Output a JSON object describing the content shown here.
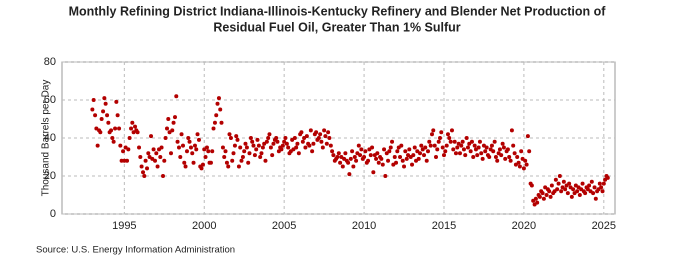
{
  "chart_data": {
    "type": "scatter",
    "title": [
      "Monthly Refining District Indiana-Illinois-Kentucky Refinery and Blender Net Production of",
      "Residual Fuel Oil, Greater Than 1% Sulfur"
    ],
    "y_label": "Thousand Barrels per Day",
    "source": "Source: U.S. Energy Information Administration",
    "color": "#b30000",
    "grid": true,
    "xlim": [
      1991.1,
      2025.7
    ],
    "xticks": [
      1995,
      2000,
      2005,
      2010,
      2015,
      2020,
      2025
    ],
    "ylim": [
      0,
      80
    ],
    "yticks": [
      0,
      20,
      40,
      60,
      80
    ],
    "x": [
      1993,
      1993.08,
      1993.17,
      1993.25,
      1993.33,
      1993.42,
      1993.5,
      1993.58,
      1993.67,
      1993.75,
      1993.83,
      1993.92,
      1994,
      1994.08,
      1994.17,
      1994.25,
      1994.33,
      1994.42,
      1994.5,
      1994.58,
      1994.67,
      1994.75,
      1994.83,
      1994.92,
      1995,
      1995.08,
      1995.17,
      1995.25,
      1995.33,
      1995.42,
      1995.5,
      1995.58,
      1995.67,
      1995.75,
      1995.83,
      1995.92,
      1996,
      1996.08,
      1996.17,
      1996.25,
      1996.33,
      1996.42,
      1996.5,
      1996.58,
      1996.67,
      1996.75,
      1996.83,
      1996.92,
      1997,
      1997.08,
      1997.17,
      1997.25,
      1997.33,
      1997.42,
      1997.5,
      1997.58,
      1997.67,
      1997.75,
      1997.83,
      1997.92,
      1998,
      1998.08,
      1998.17,
      1998.25,
      1998.33,
      1998.42,
      1998.5,
      1998.58,
      1998.67,
      1998.75,
      1998.83,
      1998.92,
      1999,
      1999.08,
      1999.17,
      1999.25,
      1999.33,
      1999.42,
      1999.5,
      1999.58,
      1999.67,
      1999.75,
      1999.83,
      1999.92,
      2000,
      2000.08,
      2000.17,
      2000.25,
      2000.33,
      2000.42,
      2000.5,
      2000.58,
      2000.67,
      2000.75,
      2000.83,
      2000.92,
      2001,
      2001.08,
      2001.17,
      2001.25,
      2001.33,
      2001.42,
      2001.5,
      2001.58,
      2001.67,
      2001.75,
      2001.83,
      2001.92,
      2002,
      2002.08,
      2002.17,
      2002.25,
      2002.33,
      2002.42,
      2002.5,
      2002.58,
      2002.67,
      2002.75,
      2002.83,
      2002.92,
      2003,
      2003.08,
      2003.17,
      2003.25,
      2003.33,
      2003.42,
      2003.5,
      2003.58,
      2003.67,
      2003.75,
      2003.83,
      2003.92,
      2004,
      2004.08,
      2004.17,
      2004.25,
      2004.33,
      2004.42,
      2004.5,
      2004.58,
      2004.67,
      2004.75,
      2004.83,
      2004.92,
      2005,
      2005.08,
      2005.17,
      2005.25,
      2005.33,
      2005.42,
      2005.5,
      2005.58,
      2005.67,
      2005.75,
      2005.83,
      2005.92,
      2006,
      2006.08,
      2006.17,
      2006.25,
      2006.33,
      2006.42,
      2006.5,
      2006.58,
      2006.67,
      2006.75,
      2006.83,
      2006.92,
      2007,
      2007.08,
      2007.17,
      2007.25,
      2007.33,
      2007.42,
      2007.5,
      2007.58,
      2007.67,
      2007.75,
      2007.83,
      2007.92,
      2008,
      2008.08,
      2008.17,
      2008.25,
      2008.33,
      2008.42,
      2008.5,
      2008.58,
      2008.67,
      2008.75,
      2008.83,
      2008.92,
      2009,
      2009.08,
      2009.17,
      2009.25,
      2009.33,
      2009.42,
      2009.5,
      2009.58,
      2009.67,
      2009.75,
      2009.83,
      2009.92,
      2010,
      2010.08,
      2010.17,
      2010.25,
      2010.33,
      2010.42,
      2010.5,
      2010.58,
      2010.67,
      2010.75,
      2010.83,
      2010.92,
      2011,
      2011.08,
      2011.17,
      2011.25,
      2011.33,
      2011.42,
      2011.5,
      2011.58,
      2011.67,
      2011.75,
      2011.83,
      2011.92,
      2012,
      2012.08,
      2012.17,
      2012.25,
      2012.33,
      2012.42,
      2012.5,
      2012.58,
      2012.67,
      2012.75,
      2012.83,
      2012.92,
      2013,
      2013.08,
      2013.17,
      2013.25,
      2013.33,
      2013.42,
      2013.5,
      2013.58,
      2013.67,
      2013.75,
      2013.83,
      2013.92,
      2014,
      2014.08,
      2014.17,
      2014.25,
      2014.33,
      2014.42,
      2014.5,
      2014.58,
      2014.67,
      2014.75,
      2014.83,
      2014.92,
      2015,
      2015.08,
      2015.17,
      2015.25,
      2015.33,
      2015.42,
      2015.5,
      2015.58,
      2015.67,
      2015.75,
      2015.83,
      2015.92,
      2016,
      2016.08,
      2016.17,
      2016.25,
      2016.33,
      2016.42,
      2016.5,
      2016.58,
      2016.67,
      2016.75,
      2016.83,
      2016.92,
      2017,
      2017.08,
      2017.17,
      2017.25,
      2017.33,
      2017.42,
      2017.5,
      2017.58,
      2017.67,
      2017.75,
      2017.83,
      2017.92,
      2018,
      2018.08,
      2018.17,
      2018.25,
      2018.33,
      2018.42,
      2018.5,
      2018.58,
      2018.67,
      2018.75,
      2018.83,
      2018.92,
      2019,
      2019.08,
      2019.17,
      2019.25,
      2019.33,
      2019.42,
      2019.5,
      2019.58,
      2019.67,
      2019.75,
      2019.83,
      2019.92,
      2020,
      2020.08,
      2020.17,
      2020.25,
      2020.33,
      2020.42,
      2020.5,
      2020.58,
      2020.67,
      2020.75,
      2020.83,
      2020.92,
      2021,
      2021.08,
      2021.17,
      2021.25,
      2021.33,
      2021.42,
      2021.5,
      2021.58,
      2021.67,
      2021.75,
      2021.83,
      2021.92,
      2022,
      2022.08,
      2022.17,
      2022.25,
      2022.33,
      2022.42,
      2022.5,
      2022.58,
      2022.67,
      2022.75,
      2022.83,
      2022.92,
      2023,
      2023.08,
      2023.17,
      2023.25,
      2023.33,
      2023.42,
      2023.5,
      2023.58,
      2023.67,
      2023.75,
      2023.83,
      2023.92,
      2024,
      2024.08,
      2024.17,
      2024.25,
      2024.33,
      2024.42,
      2024.5,
      2024.58,
      2024.67,
      2024.75,
      2024.83,
      2024.92,
      2025,
      2025.08,
      2025.17,
      2025.25
    ],
    "values": [
      55,
      60,
      52,
      45,
      36,
      44,
      43,
      50,
      54,
      61,
      58,
      52,
      48,
      43,
      44,
      40,
      38,
      45,
      59,
      52,
      45,
      36,
      28,
      33,
      28,
      35,
      28,
      34,
      40,
      45,
      48,
      43,
      46,
      44,
      43,
      35,
      30,
      25,
      22,
      20,
      28,
      24,
      32,
      30,
      41,
      29,
      34,
      28,
      32,
      25,
      34,
      30,
      35,
      20,
      28,
      40,
      45,
      50,
      43,
      32,
      44,
      48,
      51,
      62,
      38,
      35,
      30,
      42,
      36,
      27,
      25,
      33,
      40,
      38,
      35,
      32,
      27,
      36,
      34,
      42,
      39,
      25,
      24,
      26,
      34,
      30,
      35,
      33,
      27,
      27,
      33,
      45,
      48,
      52,
      58,
      61,
      55,
      48,
      35,
      30,
      33,
      27,
      25,
      42,
      40,
      28,
      32,
      36,
      41,
      39,
      25,
      35,
      28,
      30,
      33,
      37,
      35,
      27,
      32,
      40,
      38,
      36,
      31,
      34,
      39,
      36,
      30,
      32,
      35,
      37,
      28,
      38,
      40,
      42,
      35,
      31,
      37,
      39,
      40,
      38,
      33,
      35,
      34,
      36,
      38,
      40,
      37,
      35,
      32,
      33,
      39,
      34,
      40,
      35,
      37,
      32,
      42,
      43,
      38,
      40,
      35,
      41,
      37,
      36,
      44,
      33,
      37,
      42,
      43,
      39,
      40,
      42,
      38,
      35,
      44,
      41,
      37,
      43,
      40,
      36,
      33,
      31,
      28,
      29,
      30,
      32,
      27,
      30,
      25,
      29,
      32,
      28,
      27,
      21,
      29,
      33,
      25,
      30,
      28,
      32,
      36,
      31,
      34,
      29,
      30,
      33,
      27,
      28,
      34,
      31,
      35,
      22,
      31,
      29,
      32,
      27,
      30,
      29,
      26,
      34,
      20,
      32,
      28,
      33,
      35,
      38,
      26,
      30,
      27,
      33,
      35,
      30,
      36,
      28,
      25,
      33,
      29,
      31,
      34,
      30,
      26,
      31,
      35,
      28,
      33,
      29,
      32,
      36,
      34,
      31,
      35,
      28,
      33,
      38,
      36,
      42,
      44,
      36,
      30,
      34,
      38,
      40,
      43,
      35,
      31,
      33,
      36,
      42,
      40,
      38,
      44,
      34,
      38,
      32,
      35,
      37,
      32,
      36,
      38,
      34,
      31,
      40,
      35,
      37,
      33,
      38,
      30,
      36,
      34,
      31,
      35,
      38,
      32,
      29,
      36,
      33,
      35,
      31,
      30,
      34,
      36,
      33,
      38,
      30,
      28,
      32,
      34,
      31,
      37,
      35,
      29,
      33,
      34,
      30,
      28,
      44,
      36,
      32,
      26,
      30,
      27,
      25,
      33,
      29,
      24,
      28,
      26,
      41,
      33,
      16,
      15,
      7,
      5,
      8,
      6,
      10,
      9,
      12,
      11,
      8,
      14,
      10,
      13,
      12,
      9,
      15,
      11,
      12,
      18,
      13,
      16,
      20,
      12,
      14,
      17,
      13,
      15,
      11,
      16,
      14,
      9,
      13,
      11,
      15,
      12,
      14,
      10,
      13,
      16,
      12,
      11,
      14,
      13,
      15,
      12,
      17,
      11,
      14,
      8,
      12,
      13,
      16,
      14,
      12,
      16,
      18,
      20,
      19
    ]
  }
}
